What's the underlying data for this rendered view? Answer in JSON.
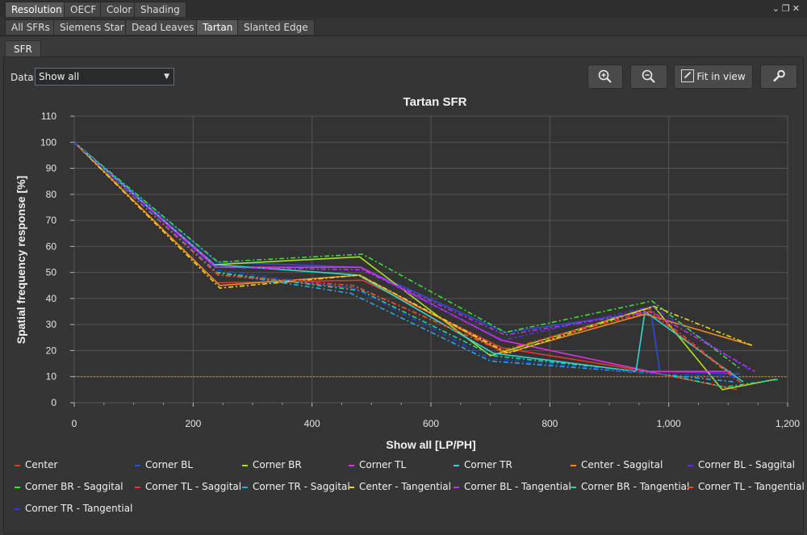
{
  "tabs": [
    "Resolution",
    "OECF",
    "Color",
    "Shading"
  ],
  "subtabs": [
    "All SFRs",
    "Siemens Star",
    "Dead Leaves",
    "Tartan",
    "Slanted Edge"
  ],
  "inner_tab": "SFR",
  "data_label": "Data",
  "data_select": "Show all",
  "toolbar": {
    "zoom_in_icon": "zoom-in-icon",
    "zoom_out_icon": "zoom-out-icon",
    "fit_label": "Fit in view",
    "settings_icon": "wrench-icon"
  },
  "chart_data": {
    "type": "line",
    "title": "Tartan SFR",
    "xlabel": "Show all [LP/PH]",
    "ylabel": "Spatial frequency response [%]",
    "xlim": [
      0,
      1200
    ],
    "ylim": [
      0,
      110
    ],
    "xticks": [
      0,
      200,
      400,
      600,
      800,
      1000,
      1200
    ],
    "xtick_labels": [
      "0",
      "200",
      "400",
      "600",
      "800",
      "1,000",
      "1,200"
    ],
    "yticks": [
      0,
      10,
      20,
      30,
      40,
      50,
      60,
      70,
      80,
      90,
      100,
      110
    ],
    "grid": true,
    "threshold": 10,
    "threshold_color": "#c8a040",
    "legend_position": "bottom",
    "series": [
      {
        "name": "Center",
        "color": "#e0382e",
        "dash": false,
        "x": [
          0,
          240,
          485,
          720,
          965,
          1115
        ],
        "y": [
          100,
          46,
          47,
          21,
          12,
          5
        ]
      },
      {
        "name": "Corner BL",
        "color": "#2a4fd6",
        "dash": false,
        "x": [
          0,
          240,
          480,
          725,
          970,
          985,
          1120
        ],
        "y": [
          100,
          54,
          52,
          27,
          35,
          12,
          11
        ]
      },
      {
        "name": "Corner BR",
        "color": "#a8e020",
        "dash": false,
        "x": [
          0,
          235,
          480,
          700,
          975,
          1090,
          1180
        ],
        "y": [
          100,
          53,
          56,
          18,
          37,
          5,
          9
        ]
      },
      {
        "name": "Corner TL",
        "color": "#e030e0",
        "dash": false,
        "x": [
          0,
          238,
          482,
          718,
          968,
          1105
        ],
        "y": [
          100,
          52,
          52,
          24,
          12,
          12
        ]
      },
      {
        "name": "Corner TR",
        "color": "#30d8d0",
        "dash": false,
        "x": [
          0,
          236,
          478,
          705,
          945,
          960,
          1125
        ],
        "y": [
          100,
          53,
          49,
          19,
          12,
          35,
          8
        ]
      },
      {
        "name": "Center - Saggital",
        "color": "#f08a20",
        "dash": false,
        "x": [
          0,
          245,
          480,
          725,
          960,
          1140
        ],
        "y": [
          100,
          45,
          49,
          19,
          34,
          22
        ]
      },
      {
        "name": "Corner BL - Saggital",
        "color": "#5a30e0",
        "dash": true,
        "x": [
          0,
          240,
          485,
          722,
          972,
          1140
        ],
        "y": [
          100,
          52,
          51,
          24,
          37,
          12
        ]
      },
      {
        "name": "Corner BR - Saggital",
        "color": "#38e030",
        "dash": true,
        "x": [
          0,
          242,
          485,
          725,
          972,
          1120
        ],
        "y": [
          100,
          54,
          57,
          27,
          39,
          13
        ]
      },
      {
        "name": "Corner TL - Saggital",
        "color": "#e83a3a",
        "dash": true,
        "x": [
          0,
          242,
          478,
          720,
          968,
          1110
        ],
        "y": [
          100,
          49,
          44,
          20,
          36,
          10
        ]
      },
      {
        "name": "Corner TR - Saggital",
        "color": "#2aa8e8",
        "dash": true,
        "x": [
          0,
          238,
          465,
          700,
          985,
          1110
        ],
        "y": [
          100,
          50,
          42,
          16,
          11,
          8
        ]
      },
      {
        "name": "Center - Tangential",
        "color": "#e8d820",
        "dash": true,
        "x": [
          0,
          245,
          480,
          730,
          975,
          1140
        ],
        "y": [
          100,
          44,
          49,
          19,
          37,
          22
        ]
      },
      {
        "name": "Corner BL - Tangential",
        "color": "#c030e8",
        "dash": true,
        "x": [
          0,
          240,
          485,
          725,
          970,
          1145
        ],
        "y": [
          100,
          52,
          51,
          26,
          35,
          12
        ]
      },
      {
        "name": "Corner BR - Tangential",
        "color": "#20d890",
        "dash": true,
        "x": [
          0,
          240,
          482,
          705,
          990,
          1095,
          1185
        ],
        "y": [
          100,
          50,
          43,
          18,
          11,
          6,
          9
        ]
      },
      {
        "name": "Corner TL - Tangential",
        "color": "#e85020",
        "dash": true,
        "x": [
          0,
          244,
          470,
          718,
          968,
          1130
        ],
        "y": [
          100,
          49,
          45,
          20,
          35,
          6
        ]
      },
      {
        "name": "Corner TR - Tangential",
        "color": "#2040e0",
        "dash": true,
        "x": [
          0,
          238,
          470,
          700,
          985,
          1120
        ],
        "y": [
          100,
          51,
          44,
          17,
          11,
          10
        ]
      }
    ]
  }
}
